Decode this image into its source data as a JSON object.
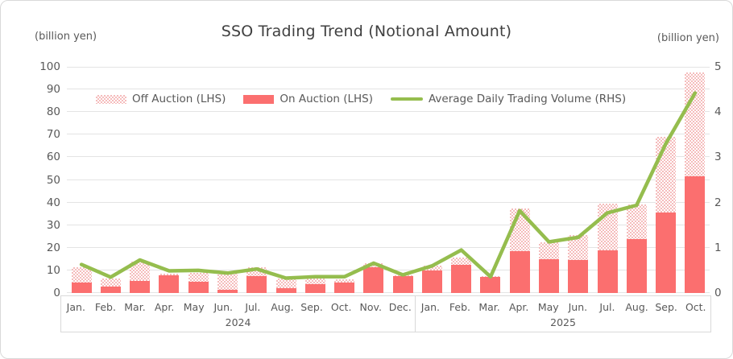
{
  "header": {
    "title": "SSO Trading Trend (Notional Amount)",
    "left_axis_unit": "(billion yen)",
    "right_axis_unit": "(billion yen)"
  },
  "legend": {
    "items": [
      {
        "label": "Off Auction (LHS)"
      },
      {
        "label": "On Auction (LHS)"
      },
      {
        "label": "Average Daily Trading Volume (RHS)"
      }
    ]
  },
  "colors": {
    "on_auction": "#FB6F6F",
    "off_auction": "#F5BCBC",
    "trend_line": "#95BD4E",
    "grid": "#E4E4E4",
    "text": "#595959",
    "title": "#404040",
    "border": "#D9D9D9"
  },
  "chart_data": {
    "type": "bar",
    "subtype": "stacked-bars-with-line-overlay",
    "title": "SSO Trading Trend (Notional Amount)",
    "grid": true,
    "legend_position": "top-inside",
    "left_axis": {
      "label": "(billion yen)",
      "min": 0,
      "max": 100,
      "step": 10,
      "ticks": [
        100,
        90,
        80,
        70,
        60,
        50,
        40,
        30,
        20,
        10,
        0
      ]
    },
    "right_axis": {
      "label": "(billion yen)",
      "min": 0,
      "max": 5,
      "step": 1,
      "ticks": [
        5,
        4,
        3,
        2,
        1,
        0
      ]
    },
    "year_groups": [
      {
        "year": "2024",
        "months": [
          "Jan.",
          "Feb.",
          "Mar.",
          "Apr.",
          "May",
          "Jun.",
          "Jul.",
          "Aug.",
          "Sep.",
          "Oct.",
          "Nov.",
          "Dec."
        ]
      },
      {
        "year": "2025",
        "months": [
          "Jan.",
          "Feb.",
          "Mar.",
          "Apr.",
          "May",
          "Jun.",
          "Jul.",
          "Aug.",
          "Sep.",
          "Oct."
        ]
      }
    ],
    "series": [
      {
        "name": "Off Auction (LHS)",
        "render": "bar-stack-top",
        "axis": "left",
        "color": "#F5BCBC",
        "values": [
          7,
          3.5,
          8.5,
          0.5,
          4,
          7.5,
          4,
          4.5,
          2.5,
          1.5,
          1.5,
          0.5,
          2,
          3,
          0.5,
          19,
          7.5,
          11,
          20.5,
          15,
          33.5,
          46
        ]
      },
      {
        "name": "On Auction (LHS)",
        "render": "bar-stack-bottom",
        "axis": "left",
        "color": "#FB6F6F",
        "values": [
          4.5,
          3,
          5.5,
          8,
          5,
          1.5,
          7.5,
          2,
          4,
          4.5,
          11.5,
          7.5,
          10,
          12.5,
          7,
          18.5,
          15,
          14.5,
          19,
          24,
          35.5,
          51.5
        ]
      },
      {
        "name": "Average Daily Trading Volume (RHS)",
        "render": "line",
        "axis": "right",
        "color": "#95BD4E",
        "values": [
          0.63,
          0.35,
          0.73,
          0.49,
          0.5,
          0.44,
          0.53,
          0.33,
          0.36,
          0.36,
          0.66,
          0.4,
          0.6,
          0.95,
          0.36,
          1.82,
          1.13,
          1.23,
          1.77,
          1.94,
          3.3,
          4.42
        ]
      }
    ]
  }
}
